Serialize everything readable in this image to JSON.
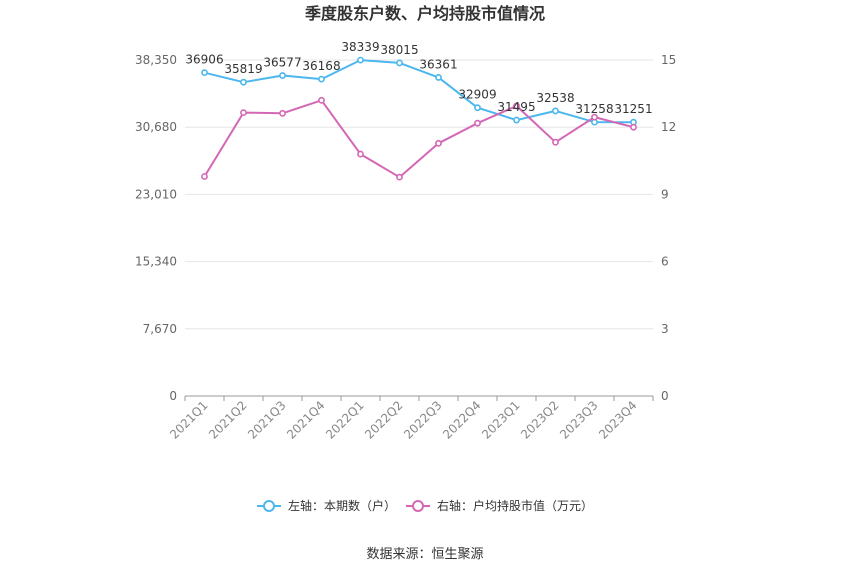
{
  "chart_data": {
    "type": "line",
    "title": "季度股东户数、户均持股市值情况",
    "categories": [
      "2021Q1",
      "2021Q2",
      "2021Q3",
      "2021Q4",
      "2022Q1",
      "2022Q2",
      "2022Q3",
      "2022Q4",
      "2023Q1",
      "2023Q2",
      "2023Q3",
      "2023Q4"
    ],
    "left_axis": {
      "min": 0,
      "max": 38350,
      "ticks": [
        0,
        7670,
        15340,
        23010,
        30680,
        38350
      ],
      "tick_labels": [
        "0",
        "7,670",
        "15,340",
        "23,010",
        "30,680",
        "38,350"
      ]
    },
    "right_axis": {
      "min": 0,
      "max": 15,
      "ticks": [
        0,
        3,
        6,
        9,
        12,
        15
      ],
      "tick_labels": [
        "0",
        "3",
        "6",
        "9",
        "12",
        "15"
      ]
    },
    "series": [
      {
        "name": "左轴：本期数（户）",
        "axis": "left",
        "color": "#4cb7ee",
        "values": [
          36906,
          35819,
          36577,
          36168,
          38339,
          38015,
          36361,
          32909,
          31495,
          32538,
          31258,
          31251
        ],
        "labels": [
          "36906",
          "35819",
          "36577",
          "36168",
          "38339",
          "38015",
          "36361",
          "32909",
          "31495",
          "32538",
          "31258",
          "31251"
        ]
      },
      {
        "name": "右轴：户均持股市值（万元）",
        "axis": "right",
        "color": "#d467b5",
        "values": [
          9.8,
          12.65,
          12.62,
          13.2,
          10.8,
          9.77,
          11.28,
          12.18,
          12.95,
          11.33,
          12.45,
          12.0
        ]
      }
    ],
    "grid": true,
    "legend_position": "bottom"
  },
  "source_text": "数据来源：恒生聚源"
}
